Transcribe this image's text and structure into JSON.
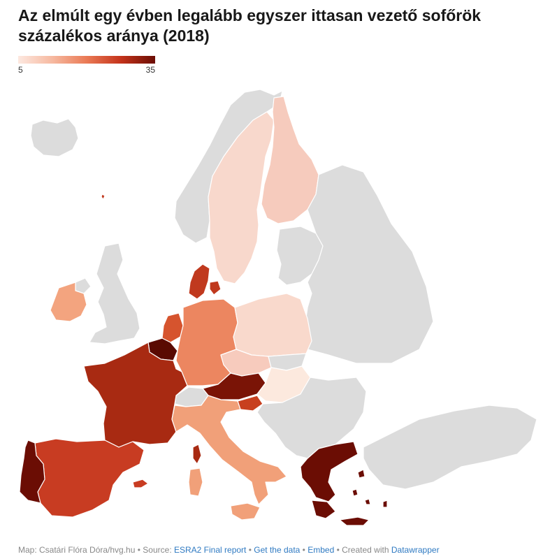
{
  "title": "Az elmúlt egy évben legalább egyszer ittasan vezető sofőrök százalékos aránya (2018)",
  "legend": {
    "min": "5",
    "max": "35"
  },
  "colors": {
    "no_data": "#dcdcdc",
    "scale": [
      "#fde8e0",
      "#f6b9a0",
      "#ea7a55",
      "#c4331b",
      "#6b0d04"
    ]
  },
  "footer": {
    "map_credit": "Map: Csatári Flóra Dóra/hvg.hu",
    "source_label": "Source:",
    "source_link": "ESRA2 Final report",
    "get_data": "Get the data",
    "embed": "Embed",
    "created_with": "Created with",
    "datawrapper": "Datawrapper",
    "separator": "•"
  },
  "map_legend_colors": {
    "portugal": "#6b0d04",
    "spain": "#c83c22",
    "france": "#a82a12",
    "belgium": "#5a0a02",
    "netherlands": "#d6542e",
    "denmark": "#c0391e",
    "germany": "#ec8660",
    "ireland": "#f3a47f",
    "austria": "#7a1406",
    "slovenia": "#c8401f",
    "italy": "#f1a079",
    "greece": "#6b0d04",
    "poland": "#f9d9cc",
    "czechia": "#f7cbbd",
    "hungary": "#fce9de",
    "sweden": "#f8d8cc",
    "finland": "#f6cbbd",
    "switzerland": "#dcdcdc"
  }
}
